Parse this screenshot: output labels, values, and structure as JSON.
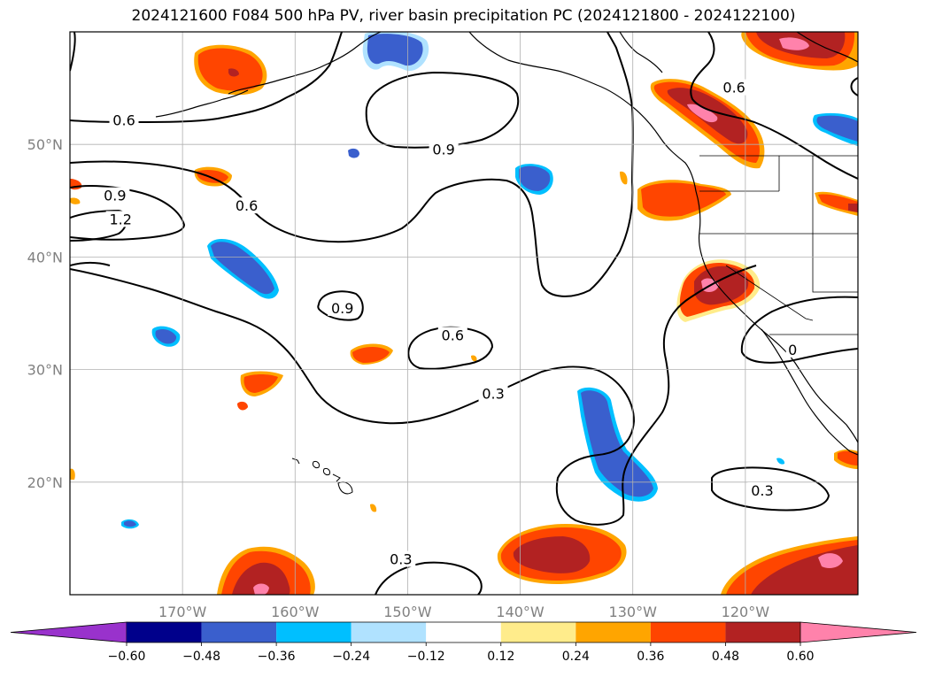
{
  "title": "2024121600 F084 500 hPa PV, river basin precipitation PC (2024121800 - 2024122100)",
  "map": {
    "projection": "PlateCarree",
    "lon_range": [
      -180,
      -110
    ],
    "lat_range": [
      10,
      60
    ],
    "gridlines": true,
    "lon_ticks": [
      {
        "value": -170,
        "label": "170°W"
      },
      {
        "value": -160,
        "label": "160°W"
      },
      {
        "value": -150,
        "label": "150°W"
      },
      {
        "value": -140,
        "label": "140°W"
      },
      {
        "value": -130,
        "label": "130°W"
      },
      {
        "value": -120,
        "label": "120°W"
      }
    ],
    "lat_ticks": [
      {
        "value": 50,
        "label": "50°N"
      },
      {
        "value": 40,
        "label": "40°N"
      },
      {
        "value": 30,
        "label": "30°N"
      },
      {
        "value": 20,
        "label": "20°N"
      }
    ]
  },
  "pv_contour_labels": [
    {
      "text": "0.6",
      "lon": -175.2,
      "lat": 52.1
    },
    {
      "text": "0.9",
      "lon": -176.0,
      "lat": 45.4
    },
    {
      "text": "1.2",
      "lon": -175.5,
      "lat": 43.3
    },
    {
      "text": "0.6",
      "lon": -164.3,
      "lat": 44.5
    },
    {
      "text": "0.9",
      "lon": -146.8,
      "lat": 49.5
    },
    {
      "text": "0.9",
      "lon": -155.8,
      "lat": 35.4
    },
    {
      "text": "0.6",
      "lon": -146.0,
      "lat": 33.0
    },
    {
      "text": "0.3",
      "lon": -142.4,
      "lat": 27.8
    },
    {
      "text": "0.3",
      "lon": -118.5,
      "lat": 19.2
    },
    {
      "text": "0.3",
      "lon": -150.6,
      "lat": 13.1
    },
    {
      "text": "0.6",
      "lon": -121.0,
      "lat": 55.0
    },
    {
      "text": "0",
      "lon": -115.8,
      "lat": 31.7
    }
  ],
  "colorbar": {
    "ticks": [
      "−0.60",
      "−0.48",
      "−0.36",
      "−0.24",
      "−0.12",
      "0.12",
      "0.24",
      "0.36",
      "0.48",
      "0.60"
    ],
    "colors": [
      "#9932cc",
      "#00008b",
      "#3a5fcd",
      "#00bfff",
      "#b0e2ff",
      "#ffffff",
      "#ffec8b",
      "#ffa500",
      "#ff4500",
      "#b22222",
      "#ff82ab"
    ],
    "extend": "both"
  }
}
